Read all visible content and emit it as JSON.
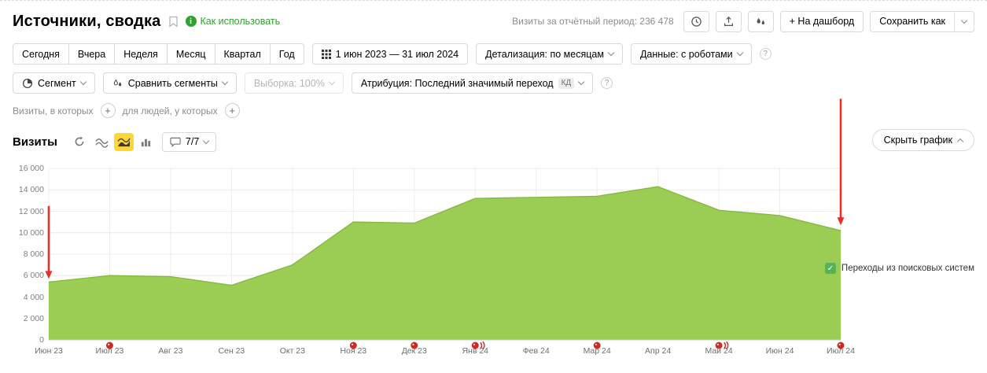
{
  "colors": {
    "accent_green": "#2fa32f",
    "chart_fill": "#9bcd54",
    "chart_line": "#84ba3f",
    "selected_yellow": "#ffd633",
    "arrow_red": "#e8312a",
    "marker_red": "#cf2b24",
    "legend_green": "#58b158"
  },
  "header": {
    "title": "Источники, сводка",
    "how_to_use": "Как использовать",
    "visits_total": "Визиты за отчётный период: 236 478",
    "add_to_dashboard": "+ На дашборд",
    "save_as": "Сохранить как"
  },
  "toolbar": {
    "periods": [
      "Сегодня",
      "Вчера",
      "Неделя",
      "Месяц",
      "Квартал",
      "Год"
    ],
    "date_range": "1 июн 2023 — 31 июл 2024",
    "detailing": "Детализация: по месяцам",
    "data_mode": "Данные: с роботами"
  },
  "segment_bar": {
    "segment": "Сегмент",
    "compare": "Сравнить сегменты",
    "sampling": "Выборка: 100%",
    "attribution": "Атрибуция: Последний значимый переход",
    "attribution_badge": "КД"
  },
  "filter_bar": {
    "visits_condition": "Визиты, в которых",
    "people_condition": "для людей, у которых"
  },
  "chart_header": {
    "title": "Визиты",
    "comments_count": "7/7",
    "hide_chart": "Скрыть график"
  },
  "legend": {
    "label": "Переходы из поисковых систем"
  },
  "chart_data": {
    "type": "area",
    "title": "Визиты",
    "categories": [
      "Июн 23",
      "Июл 23",
      "Авг 23",
      "Сен 23",
      "Окт 23",
      "Ноя 23",
      "Дек 23",
      "Янв 24",
      "Фев 24",
      "Мар 24",
      "Апр 24",
      "Май 24",
      "Июн 24",
      "Июл 24"
    ],
    "series": [
      {
        "name": "Переходы из поисковых систем",
        "color": "#9bcd54",
        "line_color": "#84ba3f",
        "values": [
          5400,
          6000,
          5900,
          5100,
          7000,
          11000,
          10900,
          13200,
          13300,
          13400,
          14300,
          12100,
          11600,
          10200
        ]
      }
    ],
    "y_max": 16000,
    "y_ticks": [
      0,
      2000,
      4000,
      6000,
      8000,
      10000,
      12000,
      14000,
      16000
    ],
    "grid": true,
    "legend_position": "right",
    "comment_markers": [
      {
        "month": "Июл 23",
        "index": 1,
        "count": 1
      },
      {
        "month": "Ноя 23",
        "index": 5,
        "count": 1
      },
      {
        "month": "Дек 23",
        "index": 6,
        "count": 1
      },
      {
        "month": "Янв 24",
        "index": 7,
        "count": 2
      },
      {
        "month": "Мар 24",
        "index": 9,
        "count": 1
      },
      {
        "month": "Май 24",
        "index": 11,
        "count": 2
      },
      {
        "month": "Июл 24",
        "index": 13,
        "count": 1
      }
    ],
    "annotation_arrows": [
      {
        "index": 0,
        "from_value": 12500,
        "to_value": 5700
      },
      {
        "index": 13,
        "from_value": 22500,
        "to_value": 10700
      }
    ]
  }
}
